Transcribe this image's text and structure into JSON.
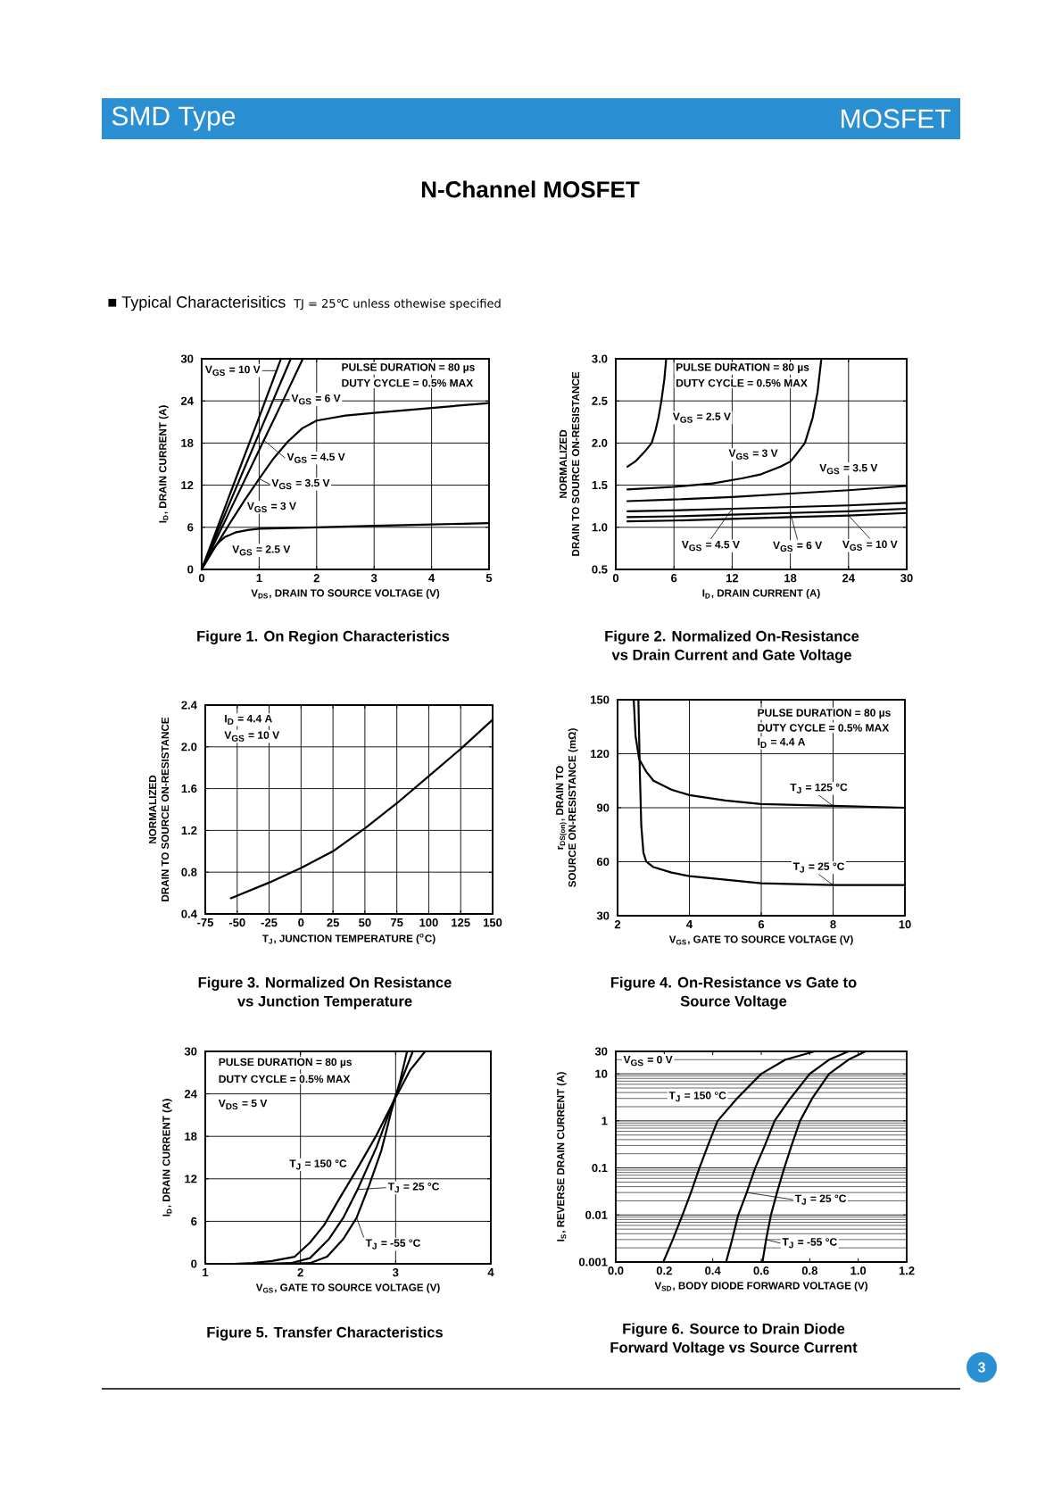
{
  "chart_data": [
    {
      "type": "other",
      "title": "N-Channel MOSFET",
      "annotations": [
        "SMD Type",
        "MOSFET",
        "■ Typical Characterisitics",
        "TJ = 25℃ unless othewise specified",
        "3"
      ]
    },
    {
      "type": "line",
      "title": "Figure 1. On Region Characteristics",
      "xlabel": "V$_{DS}$, DRAIN TO SOURCE VOLTAGE (V)",
      "ylabel": "I$_{D}$, DRAIN CURRENT (A)",
      "xlim": [
        0,
        5
      ],
      "ylim": [
        0,
        30
      ],
      "xticks": [
        0,
        1,
        2,
        3,
        4,
        5
      ],
      "yticks": [
        0,
        6,
        12,
        18,
        24,
        30
      ],
      "grid": true,
      "series": [
        {
          "x": [
            0,
            0.5,
            1.0,
            1.38
          ],
          "values": [
            0,
            10.9,
            21.7,
            30
          ],
          "color": "#000000"
        },
        {
          "x": [
            0,
            0.5,
            1.0,
            1.55
          ],
          "values": [
            0,
            9.7,
            19.4,
            30
          ],
          "color": "#000000"
        },
        {
          "x": [
            0,
            0.5,
            1.0,
            1.5,
            1.76
          ],
          "values": [
            0,
            8.5,
            17,
            25.5,
            30
          ],
          "color": "#000000"
        },
        {
          "x": [
            0,
            0.25,
            0.5,
            0.75,
            1.0,
            1.25,
            1.5,
            1.75,
            2.0,
            2.5,
            3,
            4,
            5
          ],
          "values": [
            0,
            3.4,
            6.7,
            9.9,
            12.9,
            15.8,
            18.2,
            20.1,
            21.2,
            21.9,
            22.3,
            23.0,
            23.7
          ],
          "color": "#000000"
        },
        {
          "x": [
            0,
            0.1,
            0.2,
            0.3,
            0.4,
            0.6,
            0.8,
            1.0,
            1.5,
            2,
            3,
            4,
            5
          ],
          "values": [
            0,
            1.6,
            2.9,
            3.9,
            4.6,
            5.3,
            5.6,
            5.8,
            5.9,
            6.0,
            6.2,
            6.4,
            6.6
          ],
          "color": "#000000"
        }
      ],
      "annotations": [
        "PULSE DURATION = 80 µs",
        "DUTY CYCLE = 0.5% MAX",
        {
          "text": "V$_{GS}$ = 10 V",
          "x": 1.3,
          "y": 28.3
        },
        {
          "text": "V$_{GS}$ = 6 V",
          "x": 1.25,
          "y": 24.2
        },
        {
          "text": "V$_{GS}$ = 4.5 V",
          "x": 1.08,
          "y": 18.4
        },
        {
          "text": "V$_{GS}$ = 3.5 V",
          "x": 1.0,
          "y": 12.9
        },
        {
          "text": "V$_{GS}$ = 3 V",
          "x": 1.0,
          "y": 5.8
        },
        "V$_{GS}$ = 2.5 V"
      ]
    },
    {
      "type": "line",
      "title": "Figure 2. Normalized On-Resistance vs Drain Current and Gate Voltage",
      "xlabel": "I$_{D}$, DRAIN CURRENT (A)",
      "ylabel": "NORMALIZED DRAIN TO SOURCE ON-RESISTANCE",
      "xlim": [
        0,
        30
      ],
      "ylim": [
        0.5,
        3.0
      ],
      "xticks": [
        0,
        6,
        12,
        18,
        24,
        30
      ],
      "yticks": [
        0.5,
        {
          "value": 1,
          "label": "1.0"
        },
        1.5,
        {
          "value": 2,
          "label": "2.0"
        },
        2.5,
        {
          "value": 3,
          "label": "3.0"
        }
      ],
      "grid": true,
      "series": [
        {
          "x": [
            1.2,
            2,
            3,
            3.7,
            4.1,
            4.4,
            4.7,
            5.0,
            5.2
          ],
          "values": [
            1.72,
            1.78,
            1.9,
            2.0,
            2.15,
            2.3,
            2.5,
            2.75,
            3.0
          ],
          "color": "#000000"
        },
        {
          "x": [
            1.2,
            6,
            10,
            13,
            15,
            17,
            18,
            18.5,
            19.5,
            20.3,
            20.8,
            21.2
          ],
          "values": [
            1.45,
            1.48,
            1.52,
            1.58,
            1.63,
            1.72,
            1.78,
            1.85,
            2.0,
            2.3,
            2.6,
            3.0
          ],
          "color": "#000000"
        },
        {
          "x": [
            1.2,
            6,
            12,
            18,
            24,
            30
          ],
          "values": [
            1.31,
            1.33,
            1.36,
            1.4,
            1.44,
            1.49
          ],
          "color": "#000000"
        },
        {
          "x": [
            1.2,
            6,
            12,
            18,
            24,
            30
          ],
          "values": [
            1.19,
            1.2,
            1.22,
            1.24,
            1.26,
            1.29
          ],
          "color": "#000000"
        },
        {
          "x": [
            1.2,
            6,
            12,
            18,
            24,
            30
          ],
          "values": [
            1.12,
            1.13,
            1.15,
            1.17,
            1.19,
            1.22
          ],
          "color": "#000000"
        },
        {
          "x": [
            1.2,
            6,
            12,
            18,
            24,
            30
          ],
          "values": [
            1.07,
            1.08,
            1.1,
            1.12,
            1.14,
            1.17
          ],
          "color": "#000000"
        }
      ],
      "annotations": [
        "PULSE DURATION = 80 µs",
        "DUTY CYCLE = 0.5% MAX",
        {
          "text": "V$_{GS}$ = 2.5 V",
          "x": 4.4,
          "y": 2.3
        },
        {
          "text": "V$_{GS}$ = 3 V",
          "x": 18,
          "y": 1.78
        },
        {
          "text": "V$_{GS}$ = 3.5 V",
          "x": 24,
          "y": 1.44
        },
        {
          "text": "V$_{GS}$ = 4.5 V",
          "x": 12,
          "y": 1.22
        },
        {
          "text": "V$_{GS}$ = 6 V",
          "x": 18,
          "y": 1.17
        },
        {
          "text": "V$_{GS}$ = 10 V",
          "x": 24,
          "y": 1.14
        }
      ]
    },
    {
      "type": "line",
      "title": "Figure 3. Normalized On Resistance vs Junction Temperature",
      "xlabel": "T$_{J}$, JUNCTION TEMPERATURE ($^{o}$C)",
      "ylabel": "NORMALIZED DRAIN TO SOURCE ON-RESISTANCE",
      "xlim": [
        -75,
        150
      ],
      "ylim": [
        0.4,
        2.4
      ],
      "xticks": [
        -75,
        -50,
        -25,
        0,
        25,
        50,
        75,
        100,
        125,
        150
      ],
      "yticks": [
        0.4,
        0.8,
        1.2,
        1.6,
        {
          "value": 2,
          "label": "2.0"
        },
        2.4
      ],
      "grid": true,
      "series": [
        {
          "x": [
            -55,
            -25,
            0,
            25,
            50,
            75,
            100,
            125,
            150
          ],
          "values": [
            0.55,
            0.7,
            0.84,
            1.0,
            1.22,
            1.46,
            1.72,
            1.98,
            2.26
          ],
          "color": "#000000"
        }
      ],
      "annotations": [
        "I$_{D}$ = 4.4 A",
        "V$_{GS}$ = 10 V"
      ]
    },
    {
      "type": "line",
      "title": "Figure 4. On-Resistance vs Gate to Source Voltage",
      "xlabel": "V$_{GS}$, GATE TO SOURCE VOLTAGE (V)",
      "ylabel": "r$_{DS(on)}$, DRAIN TO SOURCE ON-RESISTANCE (mΩ)",
      "xlim": [
        2,
        10
      ],
      "ylim": [
        30,
        150
      ],
      "xticks": [
        2,
        4,
        6,
        8,
        10
      ],
      "yticks": [
        30,
        60,
        90,
        120,
        150
      ],
      "grid": true,
      "series": [
        {
          "x": [
            2.45,
            2.5,
            2.6,
            2.8,
            3.0,
            3.5,
            4.0,
            5.0,
            6.0,
            8.0,
            10.0
          ],
          "values": [
            150,
            130,
            117,
            110,
            105,
            100,
            97,
            94,
            92,
            91,
            90
          ],
          "color": "#000000"
        },
        {
          "x": [
            2.58,
            2.62,
            2.66,
            2.72,
            2.8,
            3.0,
            3.5,
            4.0,
            5.0,
            6.0,
            8.0,
            10.0
          ],
          "values": [
            150,
            110,
            80,
            65,
            60,
            57,
            54,
            52,
            50,
            48,
            47,
            47
          ],
          "color": "#000000"
        }
      ],
      "annotations": [
        "PULSE DURATION = 80 µs",
        "DUTY CYCLE = 0.5% MAX",
        "I$_{D}$ = 4.4 A",
        {
          "text": "T$_{J}$ = 125 °C",
          "x": 8,
          "y": 91
        },
        {
          "text": "T$_{J}$ = 25 °C",
          "x": 8,
          "y": 47
        }
      ]
    },
    {
      "type": "line",
      "title": "Figure 5. Transfer Characteristics",
      "xlabel": "V$_{GS}$, GATE TO SOURCE VOLTAGE (V)",
      "ylabel": "I$_{D}$, DRAIN CURRENT (A)",
      "xlim": [
        1,
        4
      ],
      "ylim": [
        0,
        30
      ],
      "xticks": [
        1,
        2,
        3,
        4
      ],
      "yticks": [
        0,
        6,
        12,
        18,
        24,
        30
      ],
      "grid": true,
      "series": [
        {
          "x": [
            1.3,
            1.5,
            1.7,
            1.94,
            2.1,
            2.25,
            2.4,
            2.6,
            2.8,
            2.95,
            3.15,
            3.31
          ],
          "values": [
            0,
            0.1,
            0.4,
            1,
            3,
            5.5,
            9,
            13.5,
            18.2,
            22.2,
            27.3,
            30
          ],
          "color": "#000000"
        },
        {
          "x": [
            1.6,
            1.9,
            2.1,
            2.3,
            2.45,
            2.6,
            2.8,
            2.95,
            3.05,
            3.18
          ],
          "values": [
            0,
            0.1,
            0.8,
            3.5,
            6.5,
            10.5,
            16.5,
            22,
            25.5,
            30
          ],
          "color": "#000000"
        },
        {
          "x": [
            1.8,
            2.1,
            2.28,
            2.45,
            2.59,
            2.72,
            2.85,
            2.95,
            3.05,
            3.12
          ],
          "values": [
            0,
            0.1,
            1,
            3.5,
            6.5,
            11,
            16,
            21.3,
            26,
            30
          ],
          "color": "#000000"
        }
      ],
      "annotations": [
        "PULSE DURATION = 80 µs",
        "DUTY CYCLE = 0.5% MAX",
        "V$_{DS}$ = 5 V",
        {
          "text": "T$_{J}$ = 150 °C",
          "x": 2.6,
          "y": 13.5
        },
        {
          "text": "T$_{J}$ = 25 °C",
          "x": 2.6,
          "y": 10.5
        },
        {
          "text": "T$_{J}$ = -55 °C",
          "x": 2.59,
          "y": 6.5
        }
      ]
    },
    {
      "type": "line",
      "title": "Figure 6. Source to Drain Diode Forward Voltage vs Source Current",
      "xlabel": "V$_{SD}$, BODY DIODE FORWARD VOLTAGE (V)",
      "ylabel": "I$_{S}$, REVERSE DRAIN CURRENT (A)",
      "log": "y",
      "xlim": [
        0,
        1.2
      ],
      "ylim": [
        0.001,
        30
      ],
      "xticks": [
        {
          "value": 0,
          "label": "0.0"
        },
        0.2,
        0.4,
        0.6,
        0.8,
        {
          "value": 1,
          "label": "1.0"
        },
        1.2
      ],
      "yticks": [
        0.001,
        0.01,
        0.1,
        1,
        10,
        30
      ],
      "grid": "y",
      "series": [
        {
          "x": [
            0.196,
            0.235,
            0.275,
            0.31,
            0.345,
            0.38,
            0.42,
            0.5,
            0.6,
            0.7,
            0.82
          ],
          "values": [
            0.001,
            0.003,
            0.01,
            0.03,
            0.1,
            0.3,
            1,
            3,
            10,
            20,
            30
          ],
          "color": "#000000"
        },
        {
          "x": [
            0.455,
            0.48,
            0.505,
            0.54,
            0.575,
            0.615,
            0.655,
            0.72,
            0.8,
            0.88,
            0.96
          ],
          "values": [
            0.001,
            0.003,
            0.01,
            0.03,
            0.1,
            0.3,
            1,
            3,
            10,
            20,
            30
          ],
          "color": "#000000"
        },
        {
          "x": [
            0.605,
            0.62,
            0.64,
            0.665,
            0.695,
            0.725,
            0.76,
            0.81,
            0.88,
            0.96,
            1.03
          ],
          "values": [
            0.001,
            0.003,
            0.01,
            0.03,
            0.1,
            0.3,
            1,
            3,
            10,
            20,
            30
          ],
          "color": "#000000"
        }
      ],
      "annotations": [
        "V$_{GS}$ = 0 V",
        {
          "text": "T$_{J}$ = 150 °C",
          "x": 0.5,
          "y": 3
        },
        {
          "text": "T$_{J}$ = 25 °C",
          "x": 0.54,
          "y": 0.03
        },
        {
          "text": "T$_{J}$ = -55 °C",
          "x": 0.62,
          "y": 0.003
        }
      ]
    }
  ]
}
